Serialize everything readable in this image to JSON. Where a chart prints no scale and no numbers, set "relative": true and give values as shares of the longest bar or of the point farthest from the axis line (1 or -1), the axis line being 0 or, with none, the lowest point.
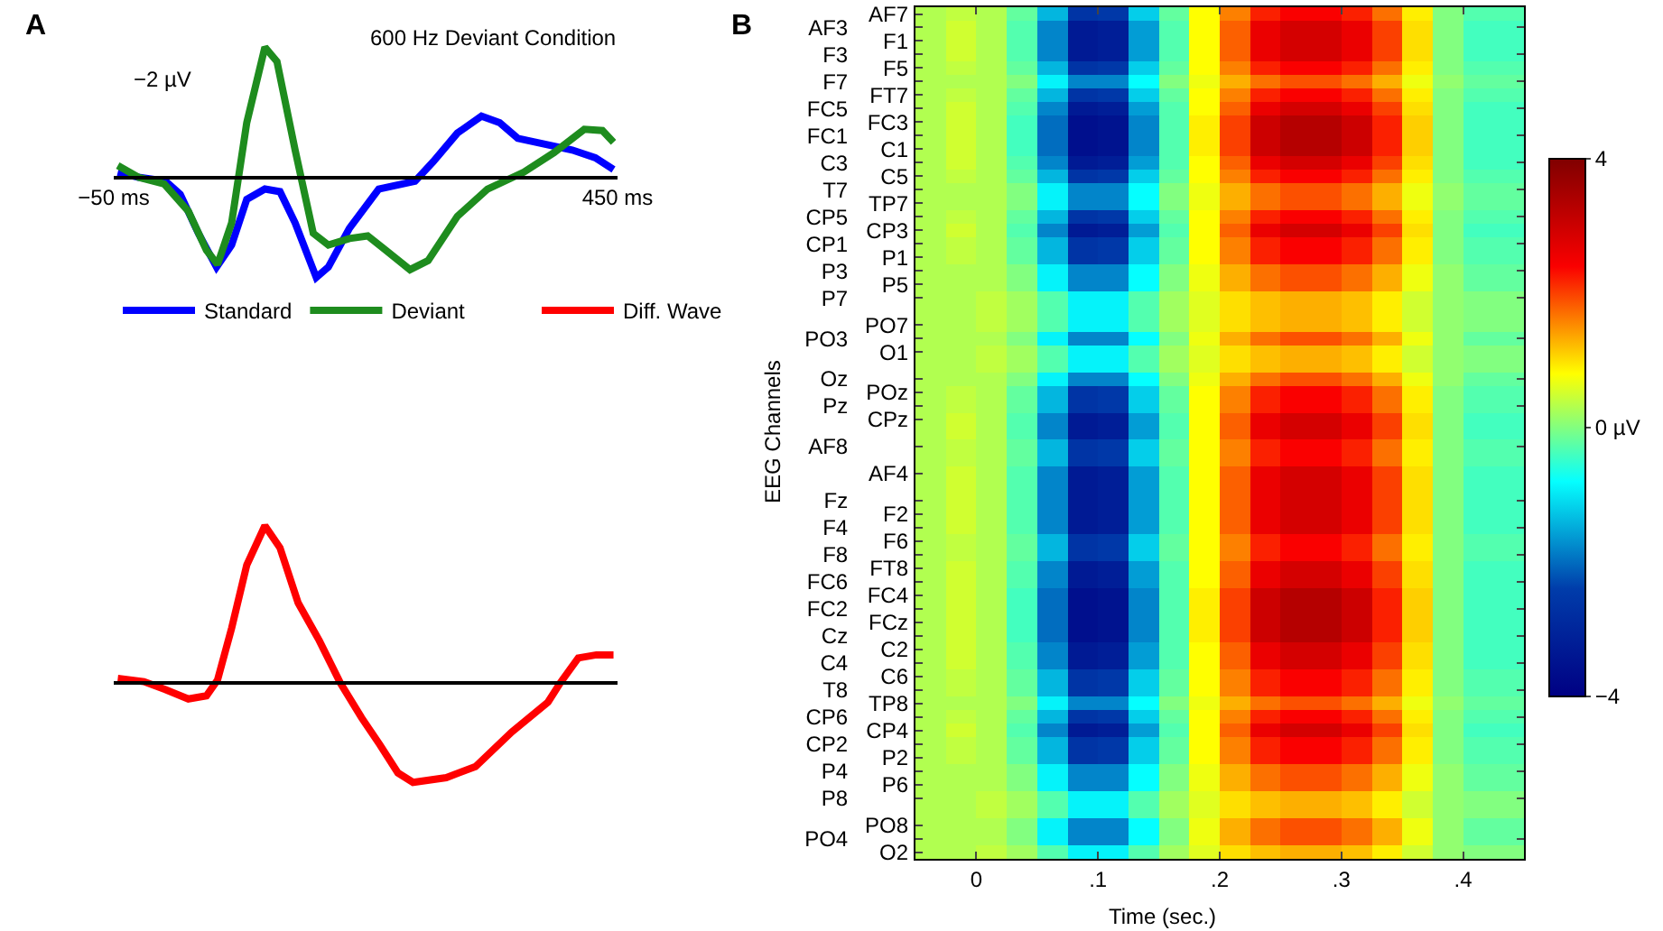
{
  "chart_data": [
    {
      "type": "line",
      "title": "600 Hz Deviant Condition",
      "annotations": [
        "A",
        "−2 µV"
      ],
      "legend": "bottom",
      "relative": true,
      "xlim": [
        -50,
        450
      ],
      "xticks": [
        {
          "value": -50,
          "label": "−50 ms"
        },
        {
          "value": 450,
          "label": "450 ms"
        }
      ],
      "series": [
        {
          "name": "Standard",
          "color": "#0000ff",
          "x": [
            -46,
            -25.5,
            1.4,
            16,
            34,
            52,
            67,
            82,
            100,
            115,
            130,
            151,
            163,
            184,
            213,
            249,
            267,
            291,
            315,
            333,
            351,
            375,
            405,
            428,
            446
          ],
          "values": [
            0.04,
            0,
            -0.03,
            -0.13,
            -0.43,
            -0.69,
            -0.52,
            -0.17,
            -0.09,
            -0.11,
            -0.35,
            -0.77,
            -0.69,
            -0.39,
            -0.09,
            -0.03,
            0.12,
            0.34,
            0.47,
            0.42,
            0.3,
            0.26,
            0.21,
            0.15,
            0.06
          ]
        },
        {
          "name": "Deviant",
          "color": "#1e8c1e",
          "x": [
            -46,
            -25.5,
            0,
            24,
            42,
            53,
            67,
            82,
            100,
            112,
            130,
            148,
            163,
            184,
            202,
            220,
            244,
            262,
            291,
            321,
            357,
            387,
            417,
            435,
            446
          ],
          "values": [
            0.09,
            0,
            -0.05,
            -0.26,
            -0.56,
            -0.67,
            -0.35,
            0.42,
            1,
            0.89,
            0.21,
            -0.43,
            -0.52,
            -0.47,
            -0.45,
            -0.56,
            -0.71,
            -0.64,
            -0.3,
            -0.09,
            0.04,
            0.19,
            0.37,
            0.36,
            0.27
          ]
        }
      ]
    },
    {
      "type": "line",
      "relative": true,
      "legend": "top",
      "xlim": [
        -50,
        450
      ],
      "series": [
        {
          "name": "Diff. Wave",
          "color": "#ff0000",
          "x": [
            -46,
            -20,
            1,
            24,
            42,
            53,
            67,
            82,
            100,
            115,
            133,
            154,
            175,
            196,
            214,
            232,
            247,
            280,
            309,
            345,
            381,
            393,
            411,
            429,
            446
          ],
          "values": [
            0.03,
            0.01,
            -0.04,
            -0.1,
            -0.08,
            0.02,
            0.35,
            0.75,
            1.0,
            0.86,
            0.51,
            0.27,
            0,
            -0.22,
            -0.39,
            -0.57,
            -0.63,
            -0.6,
            -0.53,
            -0.31,
            -0.12,
            0,
            0.16,
            0.18,
            0.18
          ]
        }
      ]
    },
    {
      "type": "heatmap",
      "xlabel": "Time (sec.)",
      "ylabel": "EEG Channels",
      "annotations": [
        "B"
      ],
      "x": [
        -0.0375,
        -0.0125,
        0.0125,
        0.0375,
        0.0625,
        0.0875,
        0.1125,
        0.1375,
        0.1625,
        0.1875,
        0.2125,
        0.2375,
        0.2625,
        0.2875,
        0.3125,
        0.3375,
        0.3625,
        0.3875,
        0.4125,
        0.4375
      ],
      "xlim": [
        -0.05,
        0.45
      ],
      "xticks": [
        0,
        {
          "value": 0.1,
          "label": ".1"
        },
        {
          "value": 0.2,
          "label": ".2"
        },
        {
          "value": 0.3,
          "label": ".3"
        },
        {
          "value": 0.4,
          "label": ".4"
        }
      ],
      "y_categories": [
        null,
        "AF3",
        null,
        "F3",
        null,
        "F7",
        null,
        "FC5",
        null,
        "FC1",
        null,
        "C3",
        null,
        "T7",
        null,
        "CP5",
        null,
        "CP1",
        null,
        "P3",
        null,
        "P7",
        null,
        null,
        "PO3",
        null,
        null,
        "Oz",
        null,
        "Pz",
        null,
        null,
        "AF8",
        null,
        null,
        null,
        "Fz",
        null,
        "F4",
        null,
        "F8",
        null,
        "FC6",
        null,
        "FC2",
        null,
        "Cz",
        null,
        "C4",
        null,
        "T8",
        null,
        "CP6",
        null,
        "CP2",
        null,
        "P4",
        null,
        "P8",
        null,
        null,
        "PO4",
        null
      ],
      "y2_categories": [
        "AF7",
        null,
        "F1",
        null,
        "F5",
        null,
        "FT7",
        null,
        "FC3",
        null,
        "C1",
        null,
        "C5",
        null,
        "TP7",
        null,
        "CP3",
        null,
        "P1",
        null,
        "P5",
        null,
        null,
        "PO7",
        null,
        "O1",
        null,
        null,
        "POz",
        null,
        "CPz",
        null,
        null,
        null,
        "AF4",
        null,
        null,
        "F2",
        null,
        "F6",
        null,
        "FT8",
        null,
        "FC4",
        null,
        "FCz",
        null,
        "C2",
        null,
        "C6",
        null,
        "TP8",
        null,
        "CP4",
        null,
        "P2",
        null,
        "P6",
        null,
        null,
        "PO8",
        null,
        "O2"
      ],
      "clim": [
        -4,
        4
      ],
      "cticks": [
        4,
        {
          "value": 0,
          "label": "0 µV"
        },
        {
          "value": -4,
          "label": "−4"
        }
      ],
      "cells": [
        [
          0.3,
          0.4,
          0.3,
          -0.2,
          -1.4,
          -2.6,
          -2.5,
          -1.2,
          -0.2,
          0.8,
          1.6,
          2.2,
          2.4,
          2.4,
          2.2,
          1.7,
          0.9,
          0,
          -0.3,
          -0.3
        ],
        [
          0.3,
          0.5,
          0.3,
          -0.3,
          -1.8,
          -3.3,
          -3.2,
          -1.6,
          -0.3,
          0.8,
          1.8,
          2.6,
          2.9,
          2.9,
          2.6,
          2,
          1,
          0,
          -0.4,
          -0.4
        ],
        [
          0.3,
          0.5,
          0.3,
          -0.3,
          -1.8,
          -3.3,
          -3.2,
          -1.6,
          -0.3,
          0.8,
          1.8,
          2.6,
          2.9,
          2.9,
          2.6,
          2,
          1,
          0,
          -0.4,
          -0.4
        ],
        [
          0.3,
          0.5,
          0.3,
          -0.3,
          -1.8,
          -3.3,
          -3.2,
          -1.6,
          -0.3,
          0.8,
          1.8,
          2.6,
          2.9,
          2.9,
          2.6,
          2,
          1,
          0,
          -0.4,
          -0.4
        ],
        [
          0.3,
          0.4,
          0.3,
          -0.2,
          -1.4,
          -2.6,
          -2.5,
          -1.2,
          -0.2,
          0.8,
          1.6,
          2.2,
          2.4,
          2.4,
          2.2,
          1.7,
          0.9,
          0,
          -0.3,
          -0.3
        ],
        [
          0.3,
          0.3,
          0.3,
          0,
          -0.9,
          -1.8,
          -1.8,
          -0.8,
          0,
          0.7,
          1.3,
          1.7,
          1.9,
          1.9,
          1.7,
          1.3,
          0.7,
          0.1,
          -0.2,
          -0.2
        ],
        [
          0.3,
          0.4,
          0.3,
          -0.2,
          -1.4,
          -2.6,
          -2.5,
          -1.2,
          -0.2,
          0.8,
          1.6,
          2.2,
          2.4,
          2.4,
          2.2,
          1.7,
          0.9,
          0,
          -0.3,
          -0.3
        ],
        [
          0.3,
          0.5,
          0.3,
          -0.3,
          -1.8,
          -3.3,
          -3.2,
          -1.6,
          -0.3,
          0.8,
          1.8,
          2.6,
          2.9,
          2.9,
          2.6,
          2,
          1,
          0,
          -0.4,
          -0.4
        ],
        [
          0.3,
          0.5,
          0.3,
          -0.4,
          -2,
          -3.6,
          -3.5,
          -1.8,
          -0.3,
          0.9,
          2,
          3,
          3.3,
          3.3,
          3,
          2.2,
          1.1,
          0,
          -0.4,
          -0.4
        ],
        [
          0.3,
          0.5,
          0.3,
          -0.4,
          -2,
          -3.6,
          -3.5,
          -1.8,
          -0.3,
          0.9,
          2,
          3,
          3.3,
          3.3,
          3,
          2.2,
          1.1,
          0,
          -0.4,
          -0.4
        ],
        [
          0.3,
          0.5,
          0.3,
          -0.4,
          -2,
          -3.6,
          -3.5,
          -1.8,
          -0.3,
          0.9,
          2,
          3,
          3.3,
          3.3,
          3,
          2.2,
          1.1,
          0,
          -0.4,
          -0.4
        ],
        [
          0.3,
          0.5,
          0.3,
          -0.3,
          -1.8,
          -3.3,
          -3.2,
          -1.6,
          -0.3,
          0.8,
          1.8,
          2.6,
          2.9,
          2.9,
          2.6,
          2,
          1,
          0,
          -0.4,
          -0.4
        ],
        [
          0.3,
          0.4,
          0.3,
          -0.2,
          -1.4,
          -2.6,
          -2.5,
          -1.2,
          -0.2,
          0.8,
          1.6,
          2.2,
          2.4,
          2.4,
          2.2,
          1.7,
          0.9,
          0,
          -0.3,
          -0.3
        ],
        [
          0.3,
          0.3,
          0.3,
          0,
          -0.9,
          -1.8,
          -1.8,
          -0.8,
          0,
          0.7,
          1.3,
          1.7,
          1.9,
          1.9,
          1.7,
          1.3,
          0.7,
          0.1,
          -0.2,
          -0.2
        ],
        [
          0.3,
          0.3,
          0.3,
          0,
          -0.9,
          -1.8,
          -1.8,
          -0.8,
          0,
          0.7,
          1.3,
          1.7,
          1.9,
          1.9,
          1.7,
          1.3,
          0.7,
          0.1,
          -0.2,
          -0.2
        ],
        [
          0.3,
          0.4,
          0.3,
          -0.2,
          -1.4,
          -2.6,
          -2.5,
          -1.2,
          -0.2,
          0.8,
          1.6,
          2.2,
          2.4,
          2.4,
          2.2,
          1.7,
          0.9,
          0,
          -0.3,
          -0.3
        ],
        [
          0.3,
          0.5,
          0.3,
          -0.3,
          -1.8,
          -3.3,
          -3.2,
          -1.6,
          -0.3,
          0.8,
          1.8,
          2.6,
          2.9,
          2.9,
          2.6,
          2,
          1,
          0,
          -0.4,
          -0.4
        ],
        [
          0.3,
          0.4,
          0.3,
          -0.2,
          -1.4,
          -2.6,
          -2.5,
          -1.2,
          -0.2,
          0.8,
          1.6,
          2.2,
          2.4,
          2.4,
          2.2,
          1.7,
          0.9,
          0,
          -0.3,
          -0.3
        ],
        [
          0.3,
          0.4,
          0.3,
          -0.2,
          -1.4,
          -2.6,
          -2.5,
          -1.2,
          -0.2,
          0.8,
          1.6,
          2.2,
          2.4,
          2.4,
          2.2,
          1.7,
          0.9,
          0,
          -0.3,
          -0.3
        ],
        [
          0.3,
          0.3,
          0.3,
          0,
          -0.9,
          -1.8,
          -1.8,
          -0.8,
          0,
          0.7,
          1.3,
          1.7,
          1.9,
          1.9,
          1.7,
          1.3,
          0.7,
          0.1,
          -0.2,
          -0.2
        ],
        [
          0.3,
          0.3,
          0.3,
          0,
          -0.9,
          -1.8,
          -1.8,
          -0.8,
          0,
          0.7,
          1.3,
          1.7,
          1.9,
          1.9,
          1.7,
          1.3,
          0.7,
          0.1,
          -0.2,
          -0.2
        ],
        [
          0.3,
          0.3,
          0.4,
          0.2,
          -0.3,
          -0.9,
          -0.9,
          -0.3,
          0.2,
          0.6,
          1,
          1.2,
          1.3,
          1.3,
          1.2,
          0.9,
          0.5,
          0.1,
          0,
          0
        ],
        [
          0.3,
          0.3,
          0.4,
          0.2,
          -0.3,
          -0.9,
          -0.9,
          -0.3,
          0.2,
          0.6,
          1,
          1.2,
          1.3,
          1.3,
          1.2,
          0.9,
          0.5,
          0.1,
          0,
          0
        ],
        [
          0.3,
          0.3,
          0.4,
          0.2,
          -0.3,
          -0.9,
          -0.9,
          -0.3,
          0.2,
          0.6,
          1,
          1.2,
          1.3,
          1.3,
          1.2,
          0.9,
          0.5,
          0.1,
          0,
          0
        ],
        [
          0.3,
          0.3,
          0.3,
          0,
          -0.9,
          -1.8,
          -1.8,
          -0.8,
          0,
          0.7,
          1.3,
          1.7,
          1.9,
          1.9,
          1.7,
          1.3,
          0.7,
          0.1,
          -0.2,
          -0.2
        ],
        [
          0.3,
          0.3,
          0.4,
          0.2,
          -0.3,
          -0.9,
          -0.9,
          -0.3,
          0.2,
          0.6,
          1,
          1.2,
          1.3,
          1.3,
          1.2,
          0.9,
          0.5,
          0.1,
          0,
          0
        ],
        [
          0.3,
          0.3,
          0.4,
          0.2,
          -0.3,
          -0.9,
          -0.9,
          -0.3,
          0.2,
          0.6,
          1,
          1.2,
          1.3,
          1.3,
          1.2,
          0.9,
          0.5,
          0.1,
          0,
          0
        ],
        [
          0.3,
          0.3,
          0.3,
          0,
          -0.9,
          -1.8,
          -1.8,
          -0.8,
          0,
          0.7,
          1.3,
          1.7,
          1.9,
          1.9,
          1.7,
          1.3,
          0.7,
          0.1,
          -0.2,
          -0.2
        ],
        [
          0.3,
          0.4,
          0.3,
          -0.2,
          -1.4,
          -2.6,
          -2.5,
          -1.2,
          -0.2,
          0.8,
          1.6,
          2.2,
          2.4,
          2.4,
          2.2,
          1.7,
          0.9,
          0,
          -0.3,
          -0.3
        ],
        [
          0.3,
          0.4,
          0.3,
          -0.2,
          -1.4,
          -2.6,
          -2.5,
          -1.2,
          -0.2,
          0.8,
          1.6,
          2.2,
          2.4,
          2.4,
          2.2,
          1.7,
          0.9,
          0,
          -0.3,
          -0.3
        ],
        [
          0.3,
          0.5,
          0.3,
          -0.3,
          -1.8,
          -3.3,
          -3.2,
          -1.6,
          -0.3,
          0.8,
          1.8,
          2.6,
          2.9,
          2.9,
          2.6,
          2,
          1,
          0,
          -0.4,
          -0.4
        ],
        [
          0.3,
          0.5,
          0.3,
          -0.3,
          -1.8,
          -3.3,
          -3.2,
          -1.6,
          -0.3,
          0.8,
          1.8,
          2.6,
          2.9,
          2.9,
          2.6,
          2,
          1,
          0,
          -0.4,
          -0.4
        ],
        [
          0.3,
          0.4,
          0.3,
          -0.2,
          -1.4,
          -2.6,
          -2.5,
          -1.2,
          -0.2,
          0.8,
          1.6,
          2.2,
          2.4,
          2.4,
          2.2,
          1.7,
          0.9,
          0,
          -0.3,
          -0.3
        ],
        [
          0.3,
          0.4,
          0.3,
          -0.2,
          -1.4,
          -2.6,
          -2.5,
          -1.2,
          -0.2,
          0.8,
          1.6,
          2.2,
          2.4,
          2.4,
          2.2,
          1.7,
          0.9,
          0,
          -0.3,
          -0.3
        ],
        [
          0.3,
          0.5,
          0.3,
          -0.3,
          -1.8,
          -3.3,
          -3.2,
          -1.6,
          -0.3,
          0.8,
          1.8,
          2.6,
          2.9,
          2.9,
          2.6,
          2,
          1,
          0,
          -0.4,
          -0.4
        ],
        [
          0.3,
          0.5,
          0.3,
          -0.3,
          -1.8,
          -3.3,
          -3.2,
          -1.6,
          -0.3,
          0.8,
          1.8,
          2.6,
          2.9,
          2.9,
          2.6,
          2,
          1,
          0,
          -0.4,
          -0.4
        ],
        [
          0.3,
          0.5,
          0.3,
          -0.3,
          -1.8,
          -3.3,
          -3.2,
          -1.6,
          -0.3,
          0.8,
          1.8,
          2.6,
          2.9,
          2.9,
          2.6,
          2,
          1,
          0,
          -0.4,
          -0.4
        ],
        [
          0.3,
          0.5,
          0.3,
          -0.3,
          -1.8,
          -3.3,
          -3.2,
          -1.6,
          -0.3,
          0.8,
          1.8,
          2.6,
          2.9,
          2.9,
          2.6,
          2,
          1,
          0,
          -0.4,
          -0.4
        ],
        [
          0.3,
          0.5,
          0.3,
          -0.3,
          -1.8,
          -3.3,
          -3.2,
          -1.6,
          -0.3,
          0.8,
          1.8,
          2.6,
          2.9,
          2.9,
          2.6,
          2,
          1,
          0,
          -0.4,
          -0.4
        ],
        [
          0.3,
          0.4,
          0.3,
          -0.2,
          -1.4,
          -2.6,
          -2.5,
          -1.2,
          -0.2,
          0.8,
          1.6,
          2.2,
          2.4,
          2.4,
          2.2,
          1.7,
          0.9,
          0,
          -0.3,
          -0.3
        ],
        [
          0.3,
          0.4,
          0.3,
          -0.2,
          -1.4,
          -2.6,
          -2.5,
          -1.2,
          -0.2,
          0.8,
          1.6,
          2.2,
          2.4,
          2.4,
          2.2,
          1.7,
          0.9,
          0,
          -0.3,
          -0.3
        ],
        [
          0.3,
          0.5,
          0.3,
          -0.3,
          -1.8,
          -3.3,
          -3.2,
          -1.6,
          -0.3,
          0.8,
          1.8,
          2.6,
          2.9,
          2.9,
          2.6,
          2,
          1,
          0,
          -0.4,
          -0.4
        ],
        [
          0.3,
          0.5,
          0.3,
          -0.3,
          -1.8,
          -3.3,
          -3.2,
          -1.6,
          -0.3,
          0.8,
          1.8,
          2.6,
          2.9,
          2.9,
          2.6,
          2,
          1,
          0,
          -0.4,
          -0.4
        ],
        [
          0.3,
          0.5,
          0.3,
          -0.4,
          -2,
          -3.6,
          -3.5,
          -1.8,
          -0.3,
          0.9,
          2,
          3,
          3.3,
          3.3,
          3,
          2.2,
          1.1,
          0,
          -0.4,
          -0.4
        ],
        [
          0.3,
          0.5,
          0.3,
          -0.4,
          -2,
          -3.6,
          -3.5,
          -1.8,
          -0.3,
          0.9,
          2,
          3,
          3.3,
          3.3,
          3,
          2.2,
          1.1,
          0,
          -0.4,
          -0.4
        ],
        [
          0.3,
          0.5,
          0.3,
          -0.4,
          -2,
          -3.6,
          -3.5,
          -1.8,
          -0.3,
          0.9,
          2,
          3,
          3.3,
          3.3,
          3,
          2.2,
          1.1,
          0,
          -0.4,
          -0.4
        ],
        [
          0.3,
          0.5,
          0.3,
          -0.4,
          -2,
          -3.6,
          -3.5,
          -1.8,
          -0.3,
          0.9,
          2,
          3,
          3.3,
          3.3,
          3,
          2.2,
          1.1,
          0,
          -0.4,
          -0.4
        ],
        [
          0.3,
          0.5,
          0.3,
          -0.3,
          -1.8,
          -3.3,
          -3.2,
          -1.6,
          -0.3,
          0.8,
          1.8,
          2.6,
          2.9,
          2.9,
          2.6,
          2,
          1,
          0,
          -0.4,
          -0.4
        ],
        [
          0.3,
          0.5,
          0.3,
          -0.3,
          -1.8,
          -3.3,
          -3.2,
          -1.6,
          -0.3,
          0.8,
          1.8,
          2.6,
          2.9,
          2.9,
          2.6,
          2,
          1,
          0,
          -0.4,
          -0.4
        ],
        [
          0.3,
          0.4,
          0.3,
          -0.2,
          -1.4,
          -2.6,
          -2.5,
          -1.2,
          -0.2,
          0.8,
          1.6,
          2.2,
          2.4,
          2.4,
          2.2,
          1.7,
          0.9,
          0,
          -0.3,
          -0.3
        ],
        [
          0.3,
          0.4,
          0.3,
          -0.2,
          -1.4,
          -2.6,
          -2.5,
          -1.2,
          -0.2,
          0.8,
          1.6,
          2.2,
          2.4,
          2.4,
          2.2,
          1.7,
          0.9,
          0,
          -0.3,
          -0.3
        ],
        [
          0.3,
          0.3,
          0.3,
          0,
          -0.9,
          -1.8,
          -1.8,
          -0.8,
          0,
          0.7,
          1.3,
          1.7,
          1.9,
          1.9,
          1.7,
          1.3,
          0.7,
          0.1,
          -0.2,
          -0.2
        ],
        [
          0.3,
          0.4,
          0.3,
          -0.2,
          -1.4,
          -2.6,
          -2.5,
          -1.2,
          -0.2,
          0.8,
          1.6,
          2.2,
          2.4,
          2.4,
          2.2,
          1.7,
          0.9,
          0,
          -0.3,
          -0.3
        ],
        [
          0.3,
          0.5,
          0.3,
          -0.3,
          -1.8,
          -3.3,
          -3.2,
          -1.6,
          -0.3,
          0.8,
          1.8,
          2.6,
          2.9,
          2.9,
          2.6,
          2,
          1,
          0,
          -0.4,
          -0.4
        ],
        [
          0.3,
          0.4,
          0.3,
          -0.2,
          -1.4,
          -2.6,
          -2.5,
          -1.2,
          -0.2,
          0.8,
          1.6,
          2.2,
          2.4,
          2.4,
          2.2,
          1.7,
          0.9,
          0,
          -0.3,
          -0.3
        ],
        [
          0.3,
          0.4,
          0.3,
          -0.2,
          -1.4,
          -2.6,
          -2.5,
          -1.2,
          -0.2,
          0.8,
          1.6,
          2.2,
          2.4,
          2.4,
          2.2,
          1.7,
          0.9,
          0,
          -0.3,
          -0.3
        ],
        [
          0.3,
          0.3,
          0.3,
          0,
          -0.9,
          -1.8,
          -1.8,
          -0.8,
          0,
          0.7,
          1.3,
          1.7,
          1.9,
          1.9,
          1.7,
          1.3,
          0.7,
          0.1,
          -0.2,
          -0.2
        ],
        [
          0.3,
          0.3,
          0.3,
          0,
          -0.9,
          -1.8,
          -1.8,
          -0.8,
          0,
          0.7,
          1.3,
          1.7,
          1.9,
          1.9,
          1.7,
          1.3,
          0.7,
          0.1,
          -0.2,
          -0.2
        ],
        [
          0.3,
          0.3,
          0.4,
          0.2,
          -0.3,
          -0.9,
          -0.9,
          -0.3,
          0.2,
          0.6,
          1,
          1.2,
          1.3,
          1.3,
          1.2,
          0.9,
          0.5,
          0.1,
          0,
          0
        ],
        [
          0.3,
          0.3,
          0.4,
          0.2,
          -0.3,
          -0.9,
          -0.9,
          -0.3,
          0.2,
          0.6,
          1,
          1.2,
          1.3,
          1.3,
          1.2,
          0.9,
          0.5,
          0.1,
          0,
          0
        ],
        [
          0.3,
          0.3,
          0.3,
          0,
          -0.9,
          -1.8,
          -1.8,
          -0.8,
          0,
          0.7,
          1.3,
          1.7,
          1.9,
          1.9,
          1.7,
          1.3,
          0.7,
          0.1,
          -0.2,
          -0.2
        ],
        [
          0.3,
          0.3,
          0.3,
          0,
          -0.9,
          -1.8,
          -1.8,
          -0.8,
          0,
          0.7,
          1.3,
          1.7,
          1.9,
          1.9,
          1.7,
          1.3,
          0.7,
          0.1,
          -0.2,
          -0.2
        ],
        [
          0.3,
          0.3,
          0.4,
          0.2,
          -0.3,
          -0.9,
          -0.9,
          -0.3,
          0.2,
          0.6,
          1,
          1.2,
          1.3,
          1.3,
          1.2,
          0.9,
          0.5,
          0.1,
          0,
          0
        ]
      ]
    }
  ]
}
